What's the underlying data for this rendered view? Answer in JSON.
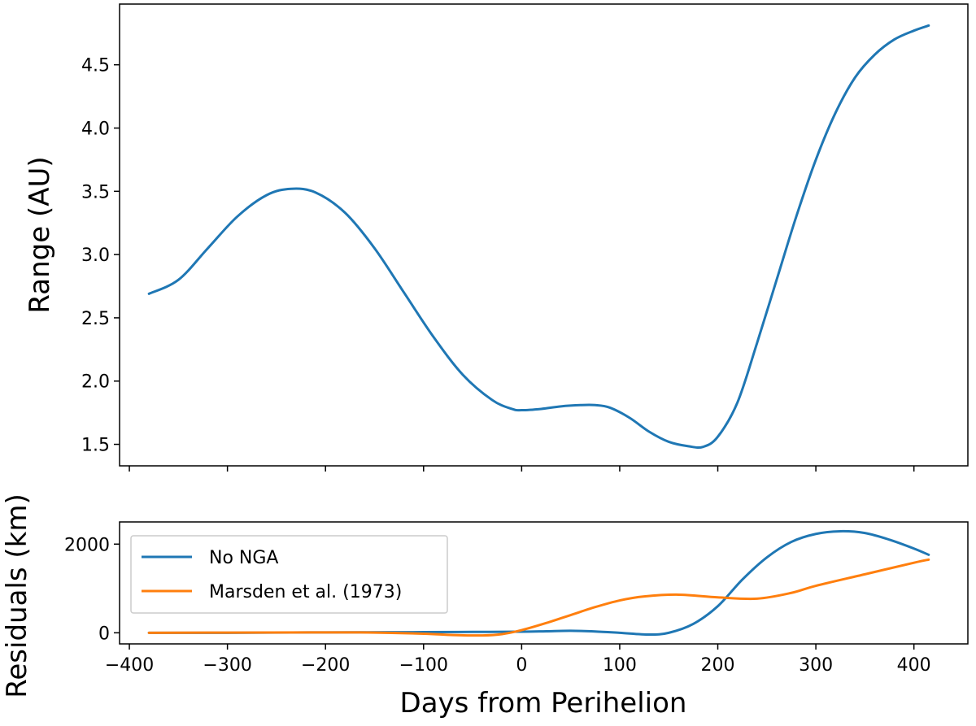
{
  "chart_data": [
    {
      "type": "line",
      "title": "",
      "xlabel": "",
      "ylabel": "Range (AU)",
      "xlim": [
        -410,
        455
      ],
      "ylim": [
        1.33,
        4.98
      ],
      "grid": false,
      "x_ticks": [
        -400,
        -300,
        -200,
        -100,
        0,
        100,
        200,
        300,
        400
      ],
      "x_tick_labels_visible": false,
      "y_ticks": [
        1.5,
        2.0,
        2.5,
        3.0,
        3.5,
        4.0,
        4.5
      ],
      "y_tick_labels": [
        "1.5",
        "2.0",
        "2.5",
        "3.0",
        "3.5",
        "4.0",
        "4.5"
      ],
      "series": [
        {
          "name": "Range",
          "color": "#1f77b4",
          "x": [
            -380,
            -350,
            -320,
            -290,
            -260,
            -235,
            -210,
            -180,
            -150,
            -120,
            -90,
            -60,
            -30,
            -10,
            0,
            20,
            40,
            60,
            75,
            90,
            110,
            130,
            150,
            170,
            185,
            200,
            220,
            240,
            260,
            280,
            300,
            320,
            340,
            360,
            380,
            400,
            415
          ],
          "values": [
            2.69,
            2.8,
            3.05,
            3.3,
            3.47,
            3.52,
            3.49,
            3.33,
            3.05,
            2.7,
            2.35,
            2.05,
            1.85,
            1.78,
            1.77,
            1.78,
            1.8,
            1.81,
            1.81,
            1.79,
            1.71,
            1.6,
            1.52,
            1.485,
            1.48,
            1.56,
            1.83,
            2.3,
            2.8,
            3.3,
            3.75,
            4.12,
            4.4,
            4.58,
            4.7,
            4.77,
            4.81
          ]
        }
      ]
    },
    {
      "type": "line",
      "title": "",
      "xlabel": "Days from Perihelion",
      "ylabel": "Residuals (km)",
      "xlim": [
        -410,
        455
      ],
      "ylim": [
        -250,
        2500
      ],
      "grid": false,
      "legend_position": "upper-left",
      "x_ticks": [
        -400,
        -300,
        -200,
        -100,
        0,
        100,
        200,
        300,
        400
      ],
      "x_tick_labels": [
        "−400",
        "−300",
        "−200",
        "−100",
        "0",
        "100",
        "200",
        "300",
        "400"
      ],
      "y_ticks": [
        0,
        2000
      ],
      "y_tick_labels": [
        "0",
        "2000"
      ],
      "series": [
        {
          "name": "No NGA",
          "color": "#1f77b4",
          "x": [
            -380,
            -300,
            -200,
            -100,
            -50,
            0,
            25,
            50,
            75,
            100,
            130,
            150,
            175,
            200,
            225,
            250,
            275,
            300,
            325,
            350,
            375,
            400,
            415
          ],
          "values": [
            0,
            0,
            10,
            15,
            20,
            25,
            35,
            45,
            30,
            0,
            -40,
            0,
            200,
            600,
            1200,
            1700,
            2050,
            2230,
            2290,
            2250,
            2100,
            1900,
            1760
          ]
        },
        {
          "name": "Marsden et al. (1973)",
          "color": "#ff7f0e",
          "x": [
            -380,
            -300,
            -200,
            -150,
            -100,
            -70,
            -40,
            -20,
            0,
            25,
            50,
            75,
            100,
            125,
            160,
            200,
            240,
            275,
            300,
            350,
            400,
            415
          ],
          "values": [
            0,
            5,
            10,
            5,
            -20,
            -50,
            -60,
            -30,
            60,
            220,
            400,
            580,
            730,
            820,
            860,
            800,
            770,
            900,
            1060,
            1320,
            1580,
            1650
          ]
        }
      ]
    }
  ]
}
